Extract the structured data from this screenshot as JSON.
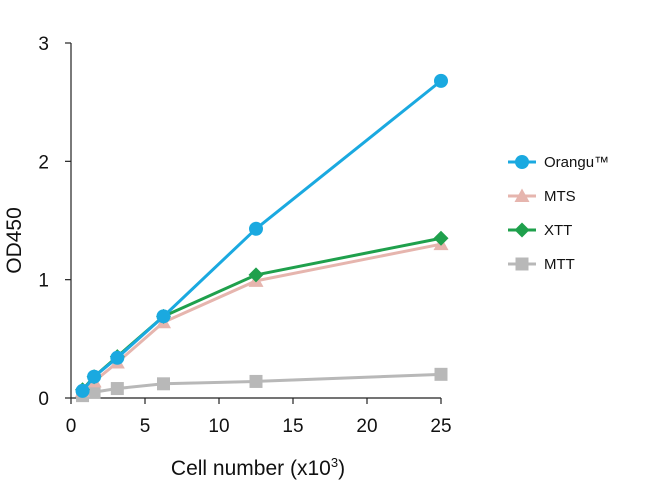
{
  "chart_data": {
    "type": "line",
    "xlabel": "Cell number (x10",
    "xlabel_superscript": "3",
    "xlabel_close": ")",
    "ylabel": "OD450",
    "xlim": [
      0,
      25
    ],
    "ylim": [
      0,
      3
    ],
    "x_ticks": [
      0,
      5,
      10,
      15,
      20,
      25
    ],
    "y_ticks": [
      0,
      1,
      2,
      3
    ],
    "grid": false,
    "legend_position": "right",
    "series": [
      {
        "name": "Orangu™",
        "color": "#1aa9e0",
        "marker": "circle",
        "x": [
          0.78,
          1.56,
          3.13,
          6.25,
          12.5,
          25
        ],
        "y": [
          0.06,
          0.18,
          0.34,
          0.69,
          1.43,
          2.68
        ]
      },
      {
        "name": "MTS",
        "color": "#e6b5ae",
        "marker": "triangle",
        "x": [
          0.78,
          1.56,
          3.13,
          6.25,
          12.5,
          25
        ],
        "y": [
          0.06,
          0.14,
          0.3,
          0.64,
          0.99,
          1.3
        ]
      },
      {
        "name": "XTT",
        "color": "#1fa04c",
        "marker": "diamond",
        "x": [
          0.78,
          1.56,
          3.13,
          6.25,
          12.5,
          25
        ],
        "y": [
          0.07,
          0.18,
          0.35,
          0.69,
          1.04,
          1.35
        ]
      },
      {
        "name": "MTT",
        "color": "#b8b8b8",
        "marker": "square",
        "x": [
          0.78,
          1.56,
          3.13,
          6.25,
          12.5,
          25
        ],
        "y": [
          0.02,
          0.05,
          0.08,
          0.12,
          0.14,
          0.2
        ]
      }
    ]
  }
}
